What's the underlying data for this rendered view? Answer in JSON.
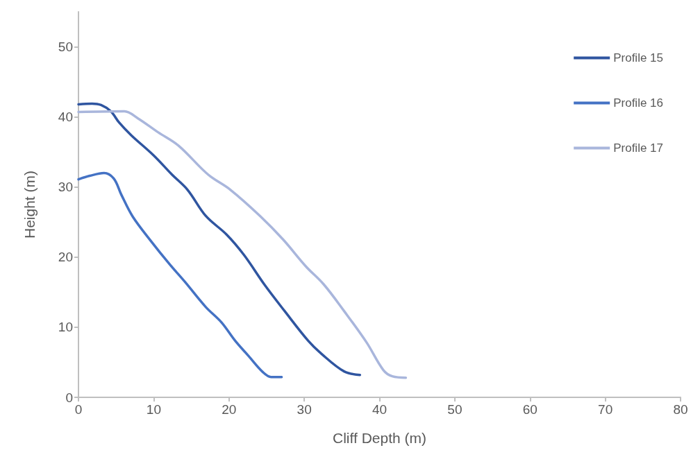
{
  "chart_data": {
    "type": "line",
    "xlabel": "Cliff Depth (m)",
    "ylabel": "Height (m)",
    "xlim": [
      0,
      80
    ],
    "xticks": [
      0,
      10,
      20,
      30,
      40,
      50,
      60,
      70,
      80
    ],
    "ylim": [
      0,
      55
    ],
    "yticks": [
      0,
      10,
      20,
      30,
      40,
      50
    ],
    "grid": false,
    "legend": "top right",
    "marker": "none",
    "line_style": "solid",
    "series": [
      {
        "name": "Profile 15",
        "color": "#2f55a0",
        "x": [
          0,
          1.8,
          3,
          4.3,
          5.4,
          7,
          10,
          12.4,
          14.5,
          16.9,
          19.7,
          22,
          24.7,
          27.4,
          30.5,
          32.3,
          35.3,
          37.4
        ],
        "values": [
          41.8,
          41.9,
          41.7,
          40.8,
          39.2,
          37.4,
          34.5,
          31.8,
          29.6,
          25.9,
          23.2,
          20.3,
          16.1,
          12.3,
          8.1,
          6.2,
          3.7,
          3.2
        ]
      },
      {
        "name": "Profile 16",
        "color": "#4472c4",
        "x": [
          0,
          1.5,
          3.4,
          4.7,
          5.7,
          7.2,
          9.7,
          12.1,
          14.2,
          16.9,
          19,
          20.8,
          22.6,
          24.5,
          25.6,
          27
        ],
        "values": [
          31.1,
          31.6,
          32,
          31.2,
          28.9,
          25.8,
          22.2,
          19,
          16.4,
          12.9,
          10.7,
          8.1,
          5.9,
          3.6,
          2.9,
          2.9
        ]
      },
      {
        "name": "Profile 17",
        "color": "#a9b6dc",
        "x": [
          0,
          6.1,
          7.9,
          10.6,
          13.3,
          17.2,
          20.2,
          24.2,
          27.2,
          30.2,
          32.6,
          35.3,
          38.3,
          40.5,
          41.7,
          43.5
        ],
        "values": [
          40.7,
          40.8,
          39.8,
          37.8,
          35.9,
          31.8,
          29.6,
          25.8,
          22.5,
          18.7,
          16.1,
          12.3,
          7.8,
          3.9,
          3,
          2.8
        ]
      }
    ]
  }
}
